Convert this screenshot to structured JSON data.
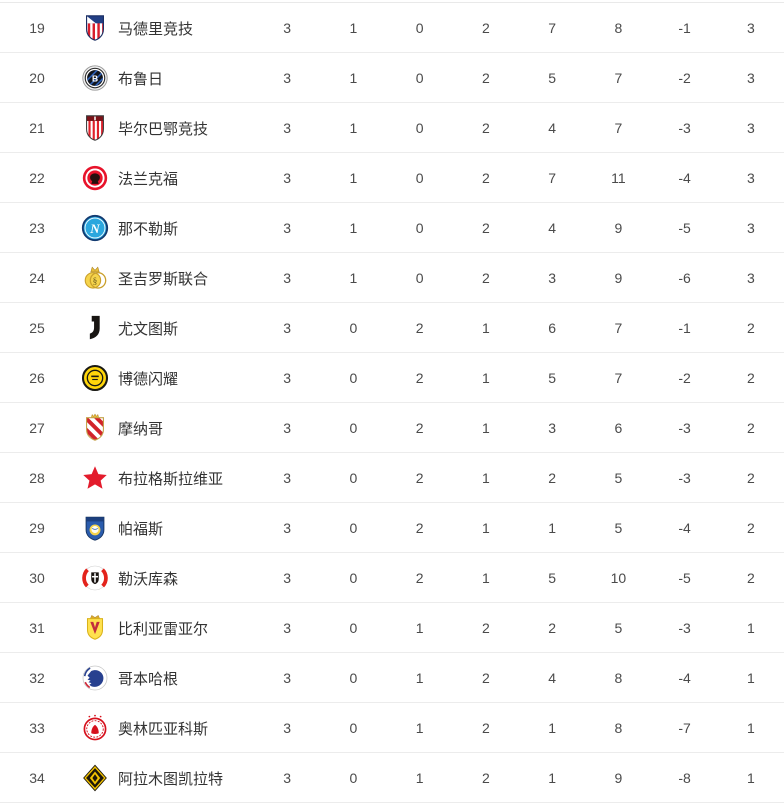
{
  "table": {
    "columns": [
      "played",
      "wins",
      "draws",
      "losses",
      "goals_for",
      "goals_against",
      "goal_diff",
      "points"
    ],
    "rows": [
      {
        "rank": "19",
        "team": "马德里竞技",
        "logo": "atletico-madrid",
        "stats": [
          "3",
          "1",
          "0",
          "2",
          "7",
          "8",
          "-1",
          "3"
        ]
      },
      {
        "rank": "20",
        "team": "布鲁日",
        "logo": "club-brugge",
        "stats": [
          "3",
          "1",
          "0",
          "2",
          "5",
          "7",
          "-2",
          "3"
        ]
      },
      {
        "rank": "21",
        "team": "毕尔巴鄂竞技",
        "logo": "athletic-bilbao",
        "stats": [
          "3",
          "1",
          "0",
          "2",
          "4",
          "7",
          "-3",
          "3"
        ]
      },
      {
        "rank": "22",
        "team": "法兰克福",
        "logo": "frankfurt",
        "stats": [
          "3",
          "1",
          "0",
          "2",
          "7",
          "11",
          "-4",
          "3"
        ]
      },
      {
        "rank": "23",
        "team": "那不勒斯",
        "logo": "napoli",
        "stats": [
          "3",
          "1",
          "0",
          "2",
          "4",
          "9",
          "-5",
          "3"
        ]
      },
      {
        "rank": "24",
        "team": "圣吉罗斯联合",
        "logo": "union-sg",
        "stats": [
          "3",
          "1",
          "0",
          "2",
          "3",
          "9",
          "-6",
          "3"
        ]
      },
      {
        "rank": "25",
        "team": "尤文图斯",
        "logo": "juventus",
        "stats": [
          "3",
          "0",
          "2",
          "1",
          "6",
          "7",
          "-1",
          "2"
        ]
      },
      {
        "rank": "26",
        "team": "博德闪耀",
        "logo": "bodo-glimt",
        "stats": [
          "3",
          "0",
          "2",
          "1",
          "5",
          "7",
          "-2",
          "2"
        ]
      },
      {
        "rank": "27",
        "team": "摩纳哥",
        "logo": "monaco",
        "stats": [
          "3",
          "0",
          "2",
          "1",
          "3",
          "6",
          "-3",
          "2"
        ]
      },
      {
        "rank": "28",
        "team": "布拉格斯拉维亚",
        "logo": "slavia-prague",
        "stats": [
          "3",
          "0",
          "2",
          "1",
          "2",
          "5",
          "-3",
          "2"
        ]
      },
      {
        "rank": "29",
        "team": "帕福斯",
        "logo": "pafos",
        "stats": [
          "3",
          "0",
          "2",
          "1",
          "1",
          "5",
          "-4",
          "2"
        ]
      },
      {
        "rank": "30",
        "team": "勒沃库森",
        "logo": "leverkusen",
        "stats": [
          "3",
          "0",
          "2",
          "1",
          "5",
          "10",
          "-5",
          "2"
        ]
      },
      {
        "rank": "31",
        "team": "比利亚雷亚尔",
        "logo": "villarreal",
        "stats": [
          "3",
          "0",
          "1",
          "2",
          "2",
          "5",
          "-3",
          "1"
        ]
      },
      {
        "rank": "32",
        "team": "哥本哈根",
        "logo": "copenhagen",
        "stats": [
          "3",
          "0",
          "1",
          "2",
          "4",
          "8",
          "-4",
          "1"
        ]
      },
      {
        "rank": "33",
        "team": "奥林匹亚科斯",
        "logo": "olympiacos",
        "stats": [
          "3",
          "0",
          "1",
          "2",
          "1",
          "8",
          "-7",
          "1"
        ]
      },
      {
        "rank": "34",
        "team": "阿拉木图凯拉特",
        "logo": "kairat-almaty",
        "stats": [
          "3",
          "0",
          "1",
          "2",
          "1",
          "9",
          "-8",
          "1"
        ]
      }
    ],
    "colors": {
      "row_separator": "#ececec",
      "text_primary": "#333333",
      "text_secondary": "#4a4a4a"
    }
  }
}
